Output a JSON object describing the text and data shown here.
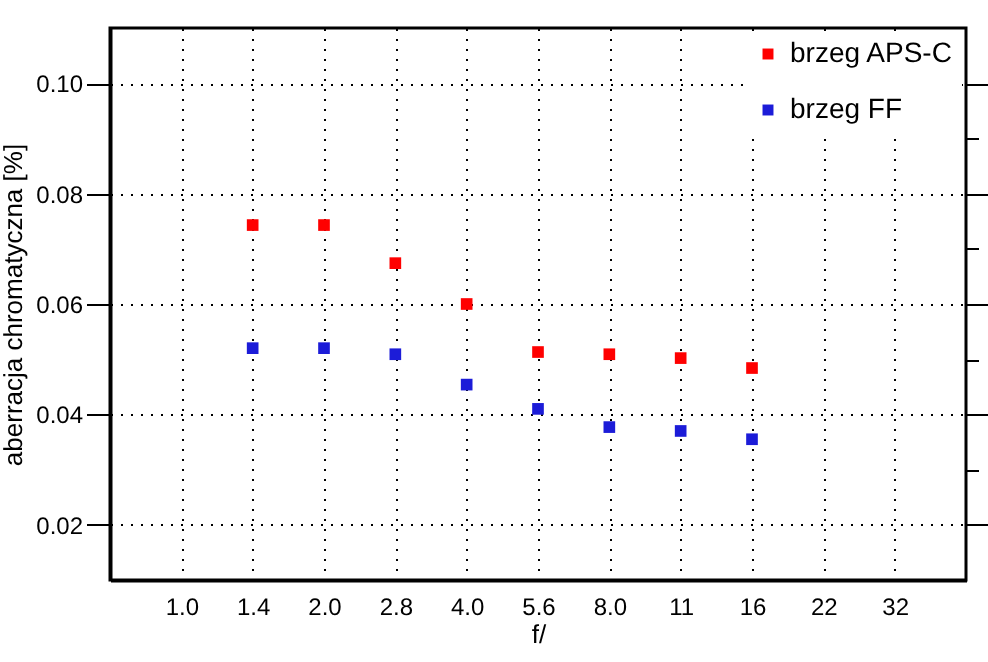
{
  "chart_data": {
    "type": "scatter",
    "xlabel": "f/",
    "ylabel": "aberracja chromatyczna [%]",
    "categories": [
      "1.0",
      "1.4",
      "2.0",
      "2.8",
      "4.0",
      "5.6",
      "8.0",
      "11",
      "16",
      "22",
      "32"
    ],
    "series": [
      {
        "name": "brzeg APS-C",
        "color": "#ff0000",
        "values": [
          null,
          0.0743,
          0.0743,
          0.0674,
          0.06,
          0.0513,
          0.0509,
          0.0502,
          0.0484,
          null,
          null
        ]
      },
      {
        "name": "brzeg FF",
        "color": "#1c1cd8",
        "values": [
          null,
          0.052,
          0.052,
          0.0509,
          0.0454,
          0.041,
          0.0377,
          0.037,
          0.0355,
          null,
          null
        ]
      }
    ],
    "ylim": [
      0.01,
      0.11
    ],
    "yticks": [
      0.02,
      {
        "value": 0.03,
        "label": null
      },
      0.04,
      {
        "value": 0.05,
        "label": null
      },
      0.06,
      {
        "value": 0.07,
        "label": null
      },
      0.08,
      {
        "value": 0.09,
        "label": null
      },
      {
        "value": 0.1,
        "label": "0.10"
      }
    ],
    "grid": true,
    "legend": "top right",
    "marker": "square"
  }
}
